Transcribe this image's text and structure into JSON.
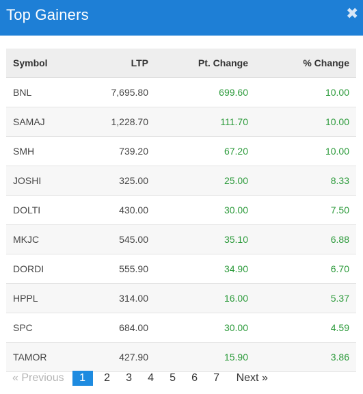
{
  "header": {
    "title": "Top Gainers",
    "close_icon": "close-icon"
  },
  "table": {
    "columns": [
      "Symbol",
      "LTP",
      "Pt. Change",
      "% Change"
    ],
    "rows": [
      [
        "BNL",
        "7,695.80",
        "699.60",
        "10.00"
      ],
      [
        "SAMAJ",
        "1,228.70",
        "111.70",
        "10.00"
      ],
      [
        "SMH",
        "739.20",
        "67.20",
        "10.00"
      ],
      [
        "JOSHI",
        "325.00",
        "25.00",
        "8.33"
      ],
      [
        "DOLTI",
        "430.00",
        "30.00",
        "7.50"
      ],
      [
        "MKJC",
        "545.00",
        "35.10",
        "6.88"
      ],
      [
        "DORDI",
        "555.90",
        "34.90",
        "6.70"
      ],
      [
        "HPPL",
        "314.00",
        "16.00",
        "5.37"
      ],
      [
        "SPC",
        "684.00",
        "30.00",
        "4.59"
      ],
      [
        "TAMOR",
        "427.90",
        "15.90",
        "3.86"
      ]
    ]
  },
  "pagination": {
    "previous": "« Previous",
    "pages": [
      "1",
      "2",
      "3",
      "4",
      "5",
      "6",
      "7"
    ],
    "active_page": "1",
    "next": "Next »"
  },
  "colors": {
    "header": "#1e7fd6",
    "positive": "#2b9a3a",
    "active_page": "#1e8be0"
  }
}
